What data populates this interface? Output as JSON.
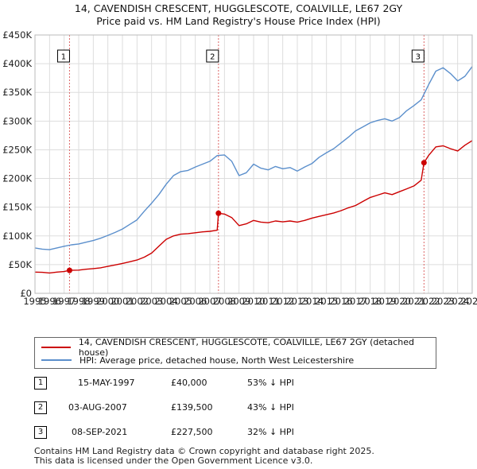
{
  "title_line1": "14, CAVENDISH CRESCENT, HUGGLESCOTE, COALVILLE, LE67 2GY",
  "title_line2": "Price paid vs. HM Land Registry's House Price Index (HPI)",
  "colors": {
    "property": "#cc0000",
    "hpi": "#5b8fcc",
    "vline": "#dd6666",
    "grid": "#dddddd",
    "shade": "#eef2fa"
  },
  "legend": {
    "property_label": "14, CAVENDISH CRESCENT, HUGGLESCOTE, COALVILLE, LE67 2GY (detached house)",
    "hpi_label": "HPI: Average price, detached house, North West Leicestershire"
  },
  "transactions": [
    {
      "marker": "1",
      "date": "15-MAY-1997",
      "price": "£40,000",
      "hpi_diff": "53% ↓ HPI"
    },
    {
      "marker": "2",
      "date": "03-AUG-2007",
      "price": "£139,500",
      "hpi_diff": "43% ↓ HPI"
    },
    {
      "marker": "3",
      "date": "08-SEP-2021",
      "price": "£227,500",
      "hpi_diff": "32% ↓ HPI"
    }
  ],
  "footer_line1": "Contains HM Land Registry data © Crown copyright and database right 2025.",
  "footer_line2": "This data is licensed under the Open Government Licence v3.0.",
  "chart_data": {
    "type": "line",
    "title": "Price paid vs. HM Land Registry's House Price Index (HPI)",
    "xlim": [
      1995,
      2025
    ],
    "ylim": [
      0,
      450000
    ],
    "x_ticks": [
      1995,
      1996,
      1997,
      1998,
      1999,
      2000,
      2001,
      2002,
      2003,
      2004,
      2005,
      2006,
      2007,
      2008,
      2009,
      2010,
      2011,
      2012,
      2013,
      2014,
      2015,
      2016,
      2017,
      2018,
      2019,
      2020,
      2021,
      2022,
      2023,
      2024,
      2025
    ],
    "y_ticks": [
      {
        "value": 0,
        "label": "£0"
      },
      {
        "value": 50000,
        "label": "£50K"
      },
      {
        "value": 100000,
        "label": "£100K"
      },
      {
        "value": 150000,
        "label": "£150K"
      },
      {
        "value": 200000,
        "label": "£200K"
      },
      {
        "value": 250000,
        "label": "£250K"
      },
      {
        "value": 300000,
        "label": "£300K"
      },
      {
        "value": 350000,
        "label": "£350K"
      },
      {
        "value": 400000,
        "label": "£400K"
      },
      {
        "value": 450000,
        "label": "£450K"
      }
    ],
    "sales": [
      {
        "marker": "1",
        "x": 1997.37,
        "y": 40000
      },
      {
        "marker": "2",
        "x": 2007.59,
        "y": 139500
      },
      {
        "marker": "3",
        "x": 2021.69,
        "y": 227500
      }
    ],
    "series": [
      {
        "name": "14, CAVENDISH CRESCENT, HUGGLESCOTE, COALVILLE, LE67 2GY (detached house)",
        "x": [
          1995,
          1995.5,
          1996,
          1996.5,
          1997,
          1997.37,
          1998,
          1998.5,
          1999,
          1999.5,
          2000,
          2000.5,
          2001,
          2001.5,
          2002,
          2002.5,
          2003,
          2003.5,
          2004,
          2004.5,
          2005,
          2005.5,
          2006,
          2006.5,
          2007,
          2007.5,
          2007.59,
          2008,
          2008.5,
          2009,
          2009.5,
          2010,
          2010.5,
          2011,
          2011.5,
          2012,
          2012.5,
          2013,
          2013.5,
          2014,
          2014.5,
          2015,
          2015.5,
          2016,
          2016.5,
          2017,
          2017.5,
          2018,
          2018.5,
          2019,
          2019.5,
          2020,
          2020.5,
          2021,
          2021.5,
          2021.69,
          2022,
          2022.5,
          2023,
          2023.5,
          2024,
          2024.5,
          2025
        ],
        "values": [
          37000,
          36500,
          35500,
          37000,
          38000,
          40000,
          40500,
          42000,
          43000,
          44500,
          47000,
          49500,
          52000,
          55000,
          58000,
          63000,
          70000,
          82000,
          94000,
          100000,
          103000,
          104000,
          105500,
          107000,
          108000,
          110000,
          139500,
          138000,
          132000,
          118000,
          121000,
          127000,
          124000,
          123000,
          126000,
          124500,
          126000,
          124000,
          127000,
          131000,
          134000,
          137000,
          140000,
          144000,
          149000,
          153000,
          160000,
          167000,
          171000,
          175000,
          172000,
          177000,
          182000,
          187000,
          197000,
          227500,
          240000,
          255000,
          257000,
          252000,
          248000,
          258000,
          266000
        ]
      },
      {
        "name": "HPI: Average price, detached house, North West Leicestershire",
        "x": [
          1995,
          1995.5,
          1996,
          1996.5,
          1997,
          1997.5,
          1998,
          1998.5,
          1999,
          1999.5,
          2000,
          2000.5,
          2001,
          2001.5,
          2002,
          2002.5,
          2003,
          2003.5,
          2004,
          2004.5,
          2005,
          2005.5,
          2006,
          2006.5,
          2007,
          2007.5,
          2008,
          2008.5,
          2009,
          2009.5,
          2010,
          2010.5,
          2011,
          2011.5,
          2012,
          2012.5,
          2013,
          2013.5,
          2014,
          2014.5,
          2015,
          2015.5,
          2016,
          2016.5,
          2017,
          2017.5,
          2018,
          2018.5,
          2019,
          2019.5,
          2020,
          2020.5,
          2021,
          2021.5,
          2022,
          2022.5,
          2023,
          2023.5,
          2024,
          2024.5,
          2025
        ],
        "values": [
          79000,
          77000,
          76000,
          79000,
          82000,
          84500,
          86000,
          89000,
          92000,
          96000,
          101000,
          106000,
          112000,
          120000,
          128000,
          143000,
          157000,
          172000,
          190000,
          205000,
          212000,
          214000,
          220000,
          225000,
          230000,
          240000,
          241000,
          230000,
          205000,
          210000,
          225000,
          218000,
          215000,
          221000,
          217000,
          219000,
          213000,
          220000,
          226000,
          237000,
          245000,
          252000,
          262000,
          272000,
          283000,
          290000,
          297000,
          301000,
          304000,
          300000,
          306000,
          318000,
          327000,
          337000,
          363000,
          387000,
          393000,
          383000,
          370000,
          378000,
          395000
        ]
      }
    ]
  }
}
